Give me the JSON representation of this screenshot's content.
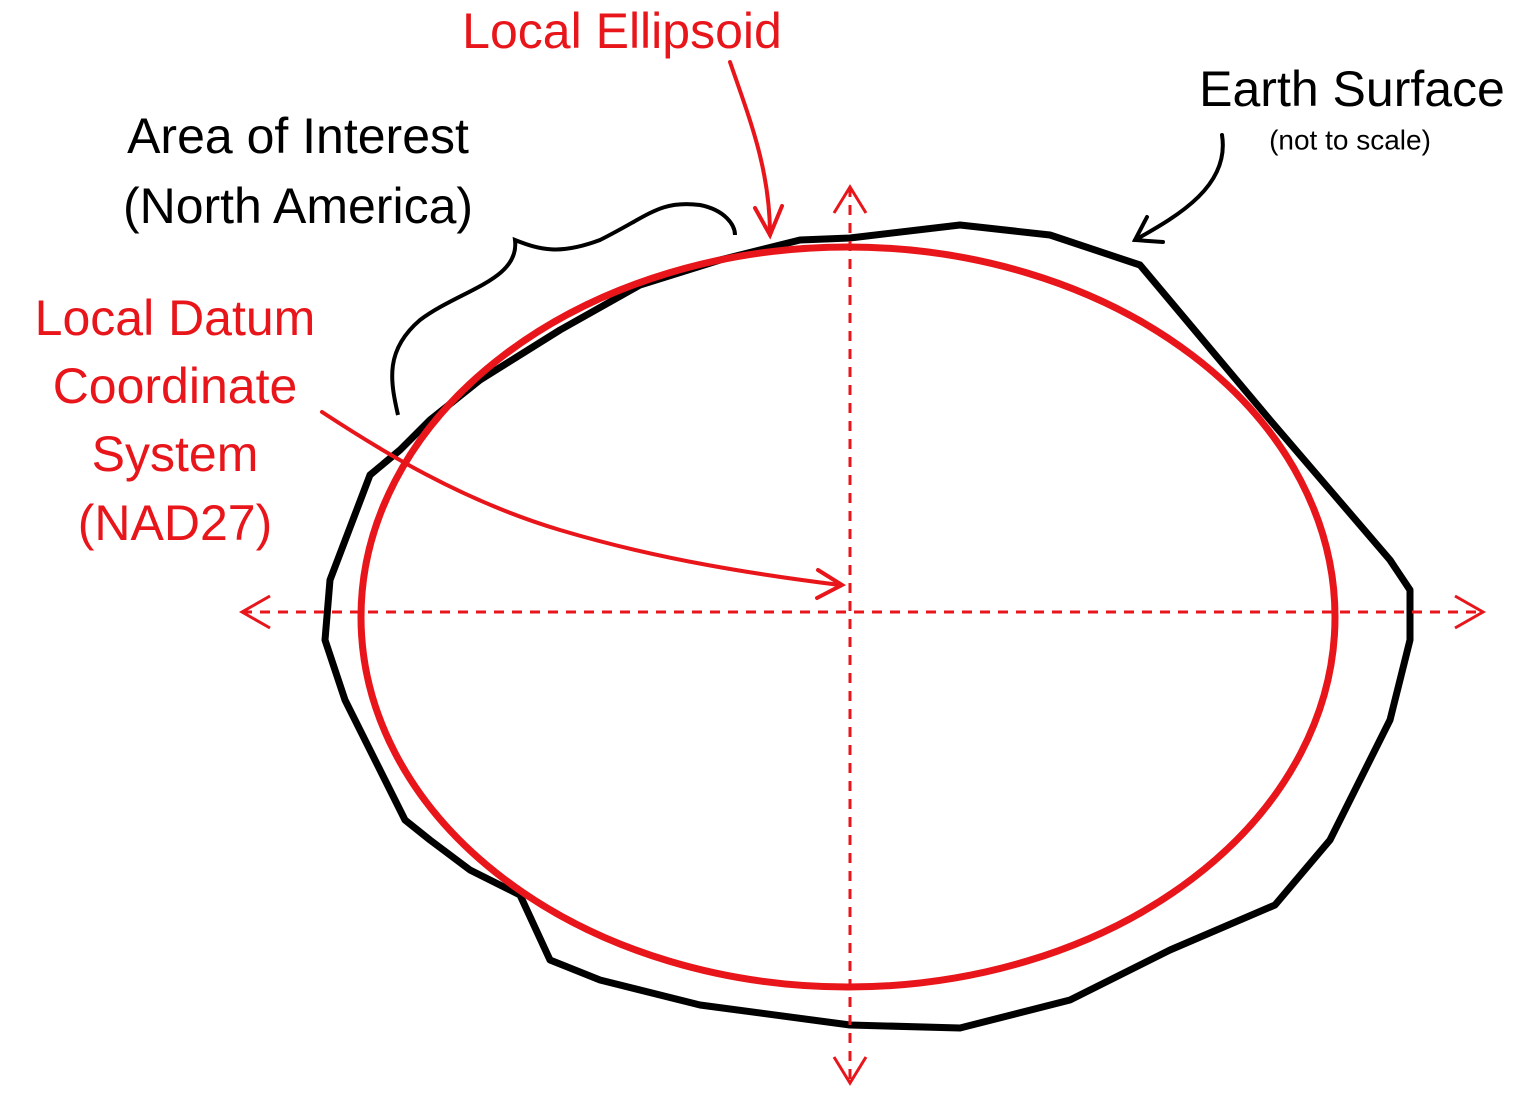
{
  "labels": {
    "local_ellipsoid": {
      "text": "Local Ellipsoid"
    },
    "earth_surface": {
      "title": "Earth Surface",
      "note": "(not to scale)"
    },
    "area_of_interest": {
      "lines": [
        "Area of Interest",
        "(North America)"
      ]
    },
    "local_datum": {
      "lines": [
        "Local Datum",
        "Coordinate",
        "System",
        "(NAD27)"
      ]
    }
  }
}
